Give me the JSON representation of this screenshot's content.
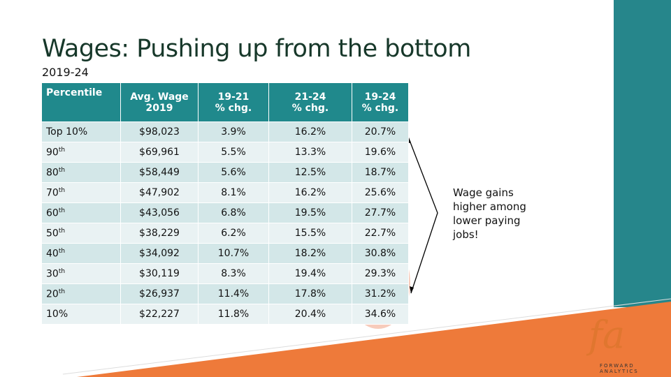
{
  "title": "Wages: Pushing up from the bottom",
  "subtitle": "2019-24",
  "table": {
    "header": [
      [
        "Percentile"
      ],
      [
        "Avg. Wage",
        "2019"
      ],
      [
        "19-21",
        "% chg."
      ],
      [
        "21-24",
        "% chg."
      ],
      [
        "19-24",
        "% chg."
      ]
    ],
    "rows": [
      {
        "percentile": "Top 10%",
        "values": [
          "$98,023",
          "3.9%",
          "16.2%",
          "20.7%"
        ]
      },
      {
        "percentile": "90",
        "suffix": "th",
        "values": [
          "$69,961",
          "5.5%",
          "13.3%",
          "19.6%"
        ]
      },
      {
        "percentile": "80",
        "suffix": "th",
        "values": [
          "$58,449",
          "5.6%",
          "12.5%",
          "18.7%"
        ]
      },
      {
        "percentile": "70",
        "suffix": "th",
        "values": [
          "$47,902",
          "8.1%",
          "16.2%",
          "25.6%"
        ]
      },
      {
        "percentile": "60",
        "suffix": "th",
        "values": [
          "$43,056",
          "6.8%",
          "19.5%",
          "27.7%"
        ]
      },
      {
        "percentile": "50",
        "suffix": "th",
        "values": [
          "$38,229",
          "6.2%",
          "15.5%",
          "22.7%"
        ]
      },
      {
        "percentile": "40",
        "suffix": "th",
        "values": [
          "$34,092",
          "10.7%",
          "18.2%",
          "30.8%"
        ]
      },
      {
        "percentile": "30",
        "suffix": "th",
        "values": [
          "$30,119",
          "8.3%",
          "19.4%",
          "29.3%"
        ]
      },
      {
        "percentile": "20",
        "suffix": "th",
        "values": [
          "$26,937",
          "11.4%",
          "17.8%",
          "31.2%"
        ]
      },
      {
        "percentile": "10%",
        "values": [
          "$22,227",
          "11.8%",
          "20.4%",
          "34.6%"
        ]
      }
    ]
  },
  "annotation": "Wage gains higher among lower paying jobs!",
  "logo": {
    "mark": "fa",
    "text": "FORWARD ANALYTICS"
  }
}
